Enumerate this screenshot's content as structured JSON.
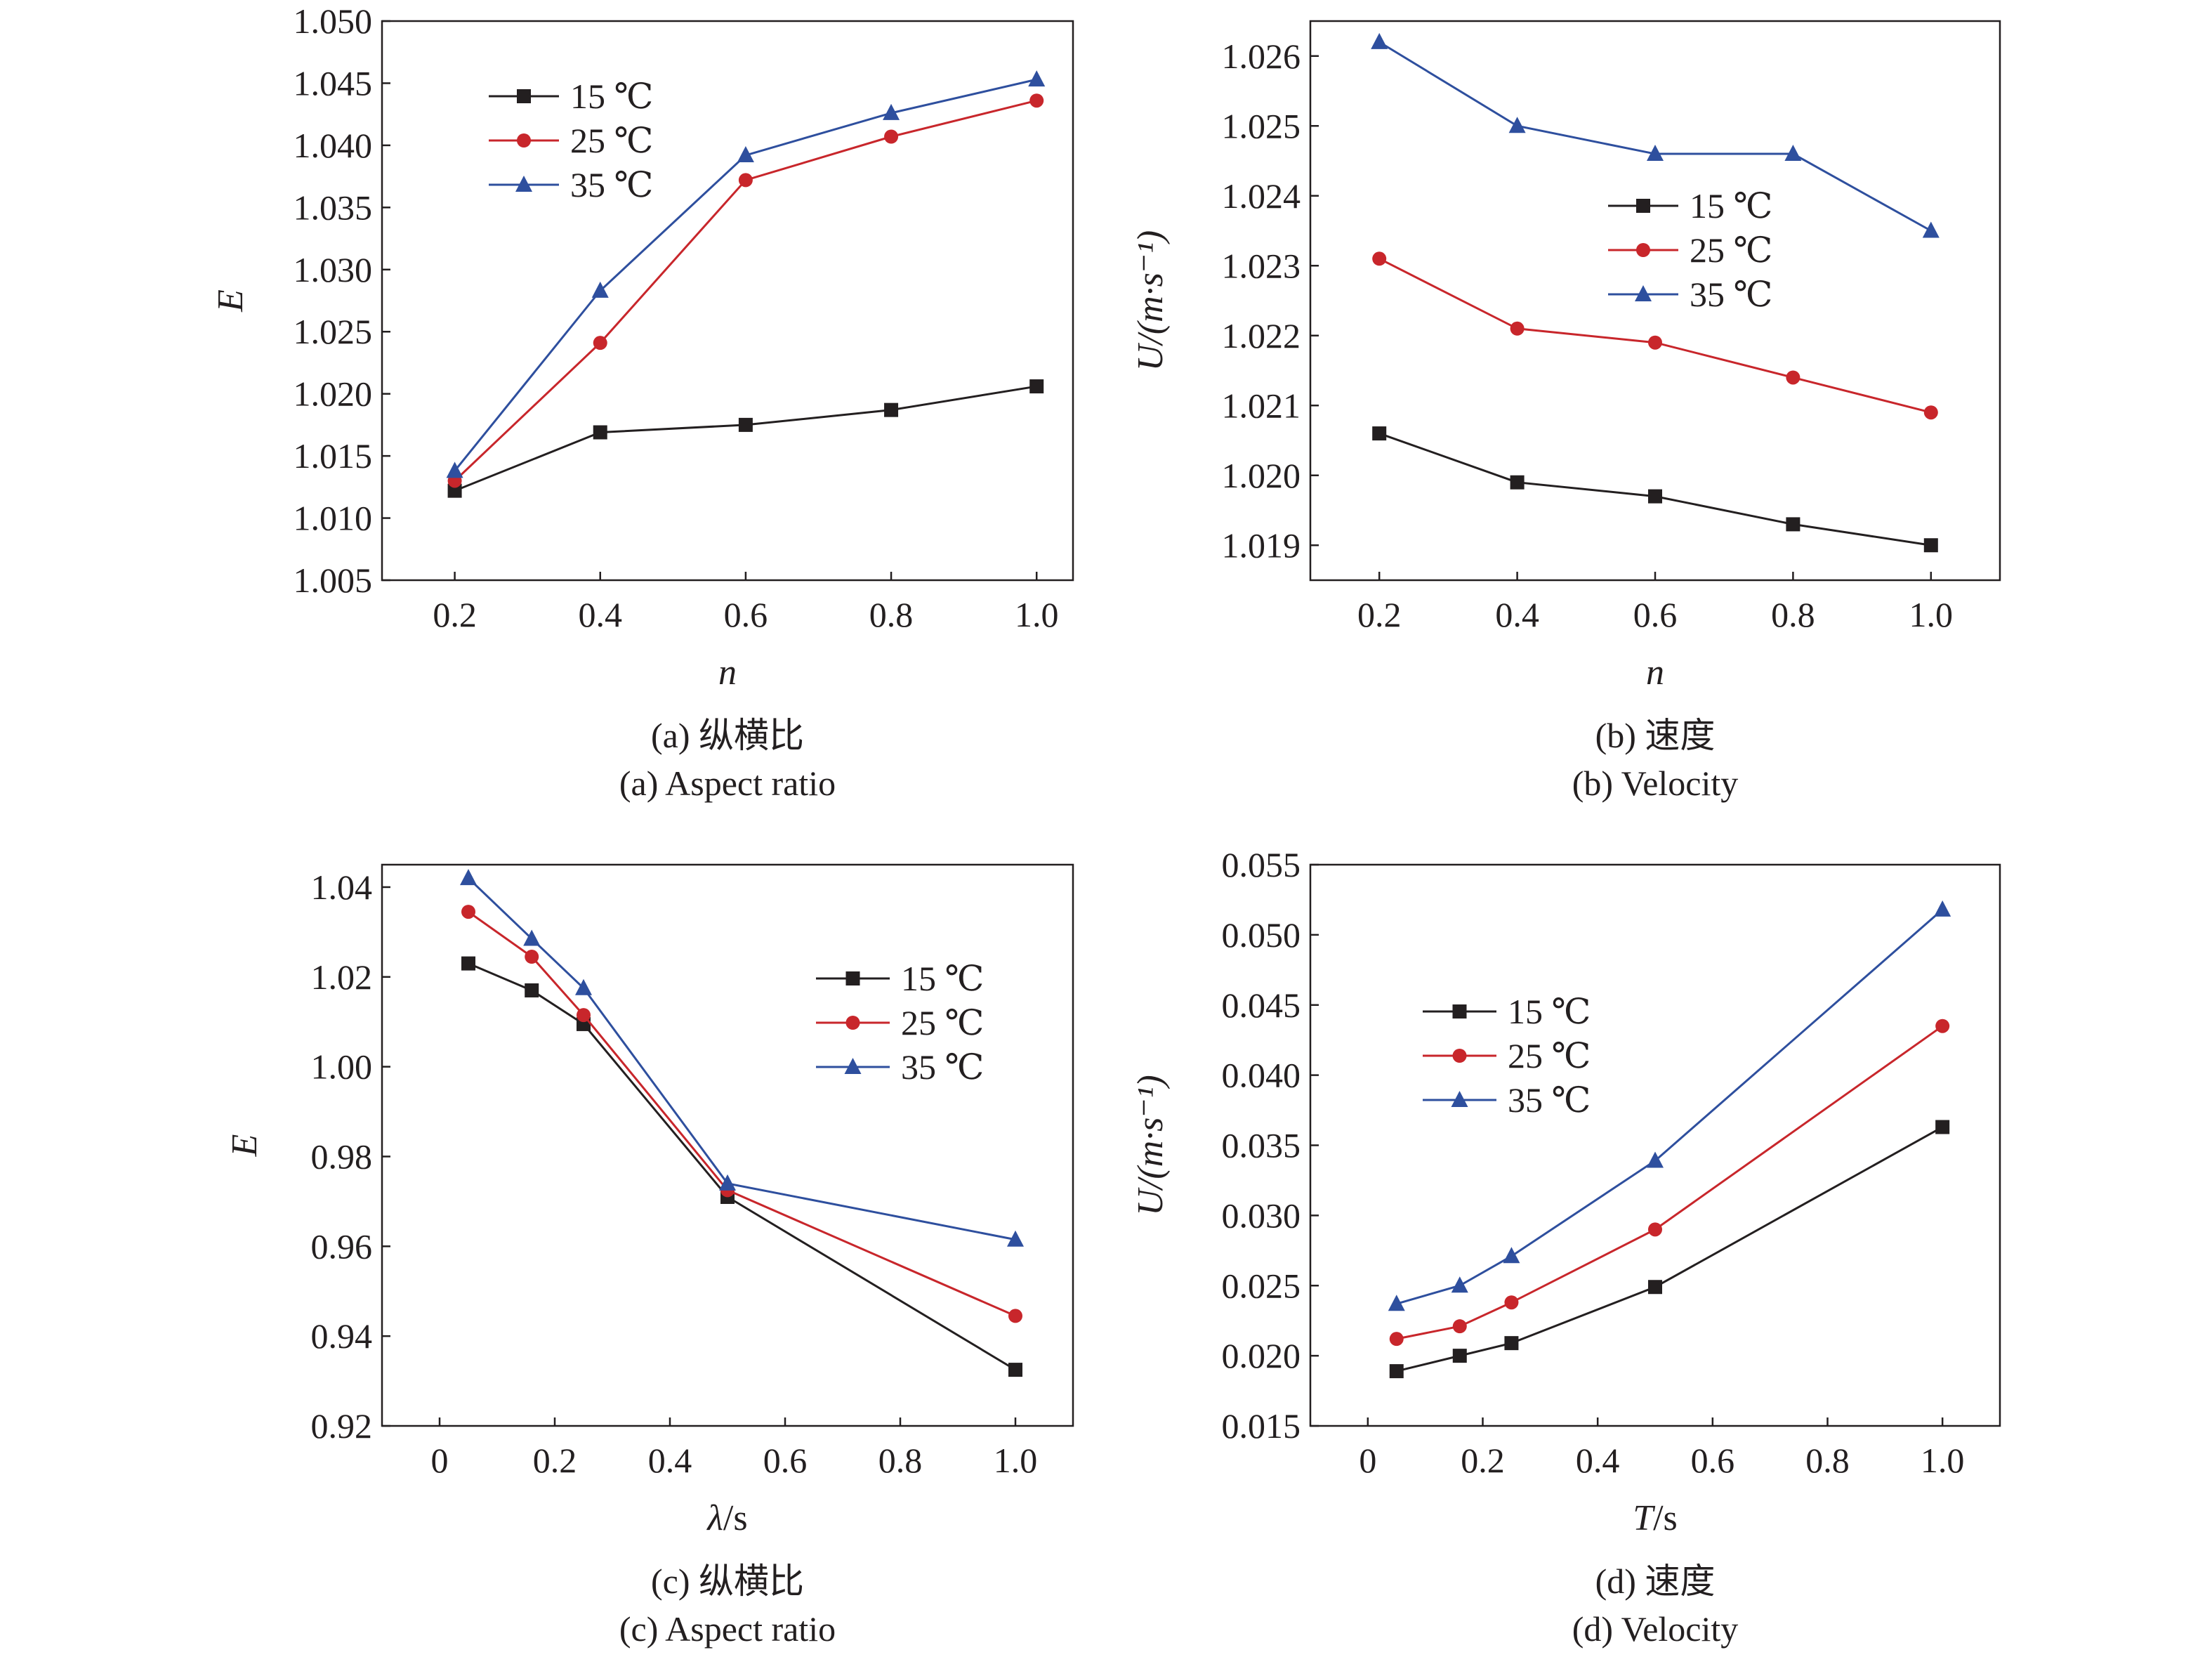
{
  "colors": {
    "s15": "#231f20",
    "s25": "#c8262b",
    "s35": "#2e4f9e",
    "axis": "#231f20"
  },
  "chart_data": [
    {
      "type": "line",
      "panel": "a",
      "x": [
        0.2,
        0.4,
        0.6,
        0.8,
        1.0
      ],
      "xticks": [
        "0.2",
        "0.4",
        "0.6",
        "0.8",
        "1.0"
      ],
      "yticks": [
        "1.005",
        "1.010",
        "1.015",
        "1.020",
        "1.025",
        "1.030",
        "1.035",
        "1.040",
        "1.045",
        "1.050"
      ],
      "xlim": [
        0.1,
        1.05
      ],
      "ylim": [
        1.005,
        1.05
      ],
      "xlabel": "n",
      "ylabel": "E",
      "caption_cn": "(a) 纵横比",
      "caption_en": "(a) Aspect ratio",
      "legend_position": "top-left",
      "series": [
        {
          "name": "15 ℃",
          "marker": "square",
          "color_key": "s15",
          "y": [
            1.0122,
            1.0169,
            1.0175,
            1.0187,
            1.0206
          ]
        },
        {
          "name": "25 ℃",
          "marker": "circle",
          "color_key": "s25",
          "y": [
            1.013,
            1.0241,
            1.0372,
            1.0407,
            1.0436
          ]
        },
        {
          "name": "35 ℃",
          "marker": "triangle",
          "color_key": "s35",
          "y": [
            1.0138,
            1.0283,
            1.0392,
            1.0426,
            1.0453
          ]
        }
      ]
    },
    {
      "type": "line",
      "panel": "b",
      "x": [
        0.2,
        0.4,
        0.6,
        0.8,
        1.0
      ],
      "xticks": [
        "0.2",
        "0.4",
        "0.6",
        "0.8",
        "1.0"
      ],
      "yticks": [
        "1.019",
        "1.020",
        "1.021",
        "1.022",
        "1.023",
        "1.024",
        "1.025",
        "1.026"
      ],
      "xlim": [
        0.1,
        1.1
      ],
      "ylim": [
        1.0185,
        1.0265
      ],
      "xlabel": "n",
      "ylabel": "U/(m·s⁻¹)",
      "caption_cn": "(b) 速度",
      "caption_en": "(b) Velocity",
      "legend_position": "center-right",
      "series": [
        {
          "name": "15 ℃",
          "marker": "square",
          "color_key": "s15",
          "y": [
            1.0206,
            1.0199,
            1.0197,
            1.0193,
            1.019
          ]
        },
        {
          "name": "25 ℃",
          "marker": "circle",
          "color_key": "s25",
          "y": [
            1.0231,
            1.0221,
            1.0219,
            1.0214,
            1.0209
          ]
        },
        {
          "name": "35 ℃",
          "marker": "triangle",
          "color_key": "s35",
          "y": [
            1.0262,
            1.025,
            1.0246,
            1.0246,
            1.0235
          ]
        }
      ]
    },
    {
      "type": "line",
      "panel": "c",
      "x": [
        0.05,
        0.16,
        0.25,
        0.5,
        1.0
      ],
      "xticks": [
        "0",
        "0.2",
        "0.4",
        "0.6",
        "0.8",
        "1.0"
      ],
      "xtick_values": [
        0,
        0.2,
        0.4,
        0.6,
        0.8,
        1.0
      ],
      "yticks": [
        "0.92",
        "0.94",
        "0.96",
        "0.98",
        "1.00",
        "1.02",
        "1.04"
      ],
      "xlim": [
        -0.1,
        1.1
      ],
      "ylim": [
        0.92,
        1.045
      ],
      "xlabel": "λ",
      "xlabel_unit": "/s",
      "ylabel": "E",
      "caption_cn": "(c) 纵横比",
      "caption_en": "(c) Aspect ratio",
      "legend_position": "top-right",
      "series": [
        {
          "name": "15 ℃",
          "marker": "square",
          "color_key": "s15",
          "y": [
            1.023,
            1.017,
            1.0095,
            0.971,
            0.9325
          ]
        },
        {
          "name": "25 ℃",
          "marker": "circle",
          "color_key": "s25",
          "y": [
            1.0345,
            1.0245,
            1.0115,
            0.9725,
            0.9445
          ]
        },
        {
          "name": "35 ℃",
          "marker": "triangle",
          "color_key": "s35",
          "y": [
            1.042,
            1.0285,
            1.0175,
            0.974,
            0.9615
          ]
        }
      ]
    },
    {
      "type": "line",
      "panel": "d",
      "x": [
        0.05,
        0.16,
        0.25,
        0.5,
        1.0
      ],
      "xticks": [
        "0",
        "0.2",
        "0.4",
        "0.6",
        "0.8",
        "1.0"
      ],
      "xtick_values": [
        0,
        0.2,
        0.4,
        0.6,
        0.8,
        1.0
      ],
      "yticks": [
        "0.015",
        "0.020",
        "0.025",
        "0.030",
        "0.035",
        "0.040",
        "0.045",
        "0.050",
        "0.055"
      ],
      "xlim": [
        -0.1,
        1.1
      ],
      "ylim": [
        0.015,
        0.055
      ],
      "xlabel": "T",
      "xlabel_unit": "/s",
      "ylabel": "U/(m·s⁻¹)",
      "caption_cn": "(d) 速度",
      "caption_en": "(d) Velocity",
      "legend_position": "top-left",
      "series": [
        {
          "name": "15 ℃",
          "marker": "square",
          "color_key": "s15",
          "y": [
            0.0189,
            0.02,
            0.0209,
            0.0249,
            0.0363
          ]
        },
        {
          "name": "25 ℃",
          "marker": "circle",
          "color_key": "s25",
          "y": [
            0.0212,
            0.0221,
            0.0238,
            0.029,
            0.0435
          ]
        },
        {
          "name": "35 ℃",
          "marker": "triangle",
          "color_key": "s35",
          "y": [
            0.0237,
            0.025,
            0.0271,
            0.0339,
            0.0518
          ]
        }
      ]
    }
  ]
}
